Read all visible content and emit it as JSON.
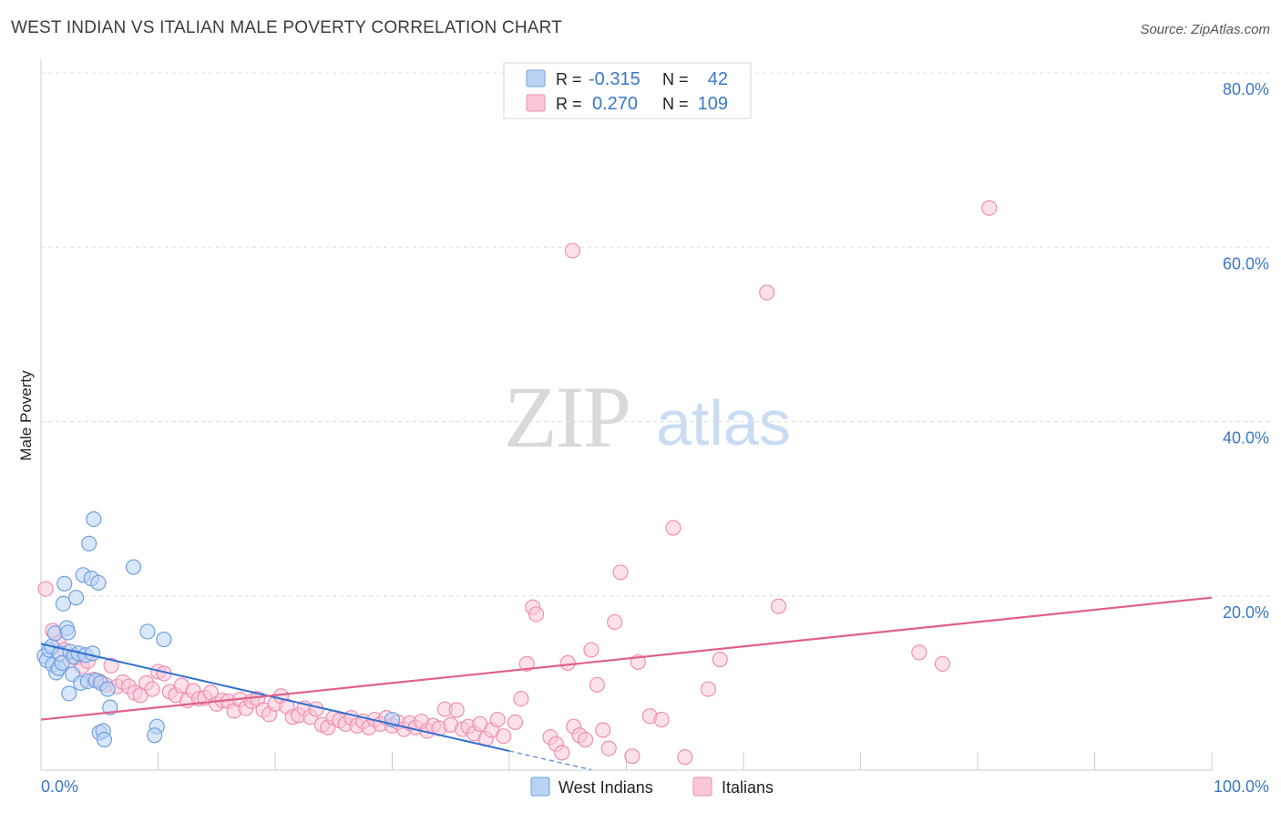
{
  "header": {
    "title": "WEST INDIAN VS ITALIAN MALE POVERTY CORRELATION CHART",
    "source": "Source: ZipAtlas.com"
  },
  "watermark": {
    "zip": "ZIP",
    "atlas": "atlas"
  },
  "colors": {
    "blue": "#6fa0e0",
    "blue_fill": "#b9d3f5",
    "blue_line": "#2f6fd0",
    "pink": "#ef8fb0",
    "pink_fill": "#f9c7d8",
    "pink_line": "#e0608a",
    "tick_label": "#3a78c9",
    "grid": "#dddddd"
  },
  "legend": {
    "rows": [
      {
        "r_label": "R =",
        "r_value": "-0.315",
        "n_label": "N =",
        "n_value": "42"
      },
      {
        "r_label": "R =",
        "r_value": "0.270",
        "n_label": "N =",
        "n_value": "109"
      }
    ]
  },
  "chart_data": {
    "type": "scatter",
    "title": "WEST INDIAN VS ITALIAN MALE POVERTY CORRELATION CHART",
    "xlabel": "",
    "ylabel": "Male Poverty",
    "xlim": [
      0,
      100
    ],
    "ylim": [
      0,
      80
    ],
    "x_tick_labels": [
      "0.0%",
      "100.0%"
    ],
    "y_ticks": [
      20,
      40,
      60,
      80
    ],
    "y_tick_labels": [
      "20.0%",
      "40.0%",
      "60.0%",
      "80.0%"
    ],
    "grid": true,
    "legend_position": "bottom-center",
    "series": [
      {
        "name": "West Indians",
        "r": -0.315,
        "n": 42,
        "trend": {
          "x0": 0,
          "y0": 14.5,
          "x1": 40,
          "y1": 2.2,
          "dash_to_x": 47
        },
        "points": [
          [
            0.3,
            13.1
          ],
          [
            0.5,
            12.6
          ],
          [
            0.7,
            13.8
          ],
          [
            0.9,
            14.2
          ],
          [
            1.0,
            12.1
          ],
          [
            1.2,
            15.7
          ],
          [
            1.3,
            11.2
          ],
          [
            1.5,
            11.7
          ],
          [
            1.6,
            13.4
          ],
          [
            1.8,
            12.3
          ],
          [
            1.9,
            19.1
          ],
          [
            2.0,
            21.4
          ],
          [
            2.2,
            16.3
          ],
          [
            2.3,
            15.8
          ],
          [
            2.5,
            13.6
          ],
          [
            2.7,
            11.0
          ],
          [
            2.4,
            8.8
          ],
          [
            2.8,
            13.0
          ],
          [
            3.0,
            19.8
          ],
          [
            3.2,
            13.4
          ],
          [
            3.4,
            10.0
          ],
          [
            3.6,
            22.4
          ],
          [
            3.8,
            13.2
          ],
          [
            4.0,
            10.2
          ],
          [
            4.1,
            26.0
          ],
          [
            4.3,
            22.0
          ],
          [
            4.4,
            13.4
          ],
          [
            4.5,
            28.8
          ],
          [
            4.7,
            10.3
          ],
          [
            4.9,
            21.5
          ],
          [
            5.0,
            4.3
          ],
          [
            5.1,
            10.0
          ],
          [
            5.3,
            4.5
          ],
          [
            5.4,
            3.5
          ],
          [
            5.7,
            9.3
          ],
          [
            5.9,
            7.2
          ],
          [
            7.9,
            23.3
          ],
          [
            9.1,
            15.9
          ],
          [
            9.9,
            5.0
          ],
          [
            9.7,
            4.0
          ],
          [
            10.5,
            15.0
          ],
          [
            30.0,
            5.8
          ]
        ]
      },
      {
        "name": "Italians",
        "r": 0.27,
        "n": 109,
        "trend": {
          "x0": 0,
          "y0": 5.8,
          "x1": 100,
          "y1": 19.8
        },
        "points": [
          [
            0.4,
            20.8
          ],
          [
            1.0,
            16.0
          ],
          [
            1.5,
            14.6
          ],
          [
            2.0,
            13.8
          ],
          [
            2.5,
            12.6
          ],
          [
            3.0,
            12.9
          ],
          [
            3.5,
            11.9
          ],
          [
            4.0,
            12.5
          ],
          [
            4.5,
            10.4
          ],
          [
            5.0,
            10.2
          ],
          [
            5.5,
            9.8
          ],
          [
            6.0,
            12.0
          ],
          [
            6.5,
            9.6
          ],
          [
            7.0,
            10.1
          ],
          [
            7.5,
            9.6
          ],
          [
            8.0,
            8.9
          ],
          [
            8.5,
            8.6
          ],
          [
            9.0,
            10.0
          ],
          [
            9.5,
            9.3
          ],
          [
            10.0,
            11.3
          ],
          [
            10.5,
            11.1
          ],
          [
            11.0,
            9.0
          ],
          [
            11.5,
            8.6
          ],
          [
            12.0,
            9.7
          ],
          [
            12.5,
            8.0
          ],
          [
            13.0,
            9.1
          ],
          [
            13.5,
            8.2
          ],
          [
            14.0,
            8.3
          ],
          [
            14.5,
            8.9
          ],
          [
            15.0,
            7.6
          ],
          [
            15.5,
            8.0
          ],
          [
            16.0,
            7.9
          ],
          [
            16.5,
            6.8
          ],
          [
            17.0,
            8.1
          ],
          [
            17.5,
            7.1
          ],
          [
            18.0,
            7.9
          ],
          [
            18.5,
            8.2
          ],
          [
            19.0,
            6.9
          ],
          [
            19.5,
            6.4
          ],
          [
            20.0,
            7.6
          ],
          [
            20.5,
            8.5
          ],
          [
            21.0,
            7.3
          ],
          [
            21.5,
            6.1
          ],
          [
            22.0,
            6.3
          ],
          [
            22.5,
            7.1
          ],
          [
            23.0,
            6.1
          ],
          [
            23.5,
            7.0
          ],
          [
            24.0,
            5.2
          ],
          [
            24.5,
            4.9
          ],
          [
            25.0,
            6.0
          ],
          [
            25.5,
            5.7
          ],
          [
            26.0,
            5.3
          ],
          [
            26.5,
            6.0
          ],
          [
            27.0,
            5.1
          ],
          [
            27.5,
            5.6
          ],
          [
            28.0,
            4.9
          ],
          [
            28.5,
            5.8
          ],
          [
            29.0,
            5.3
          ],
          [
            29.5,
            6.0
          ],
          [
            30.0,
            5.1
          ],
          [
            30.5,
            5.5
          ],
          [
            31.0,
            4.7
          ],
          [
            31.5,
            5.4
          ],
          [
            32.0,
            4.9
          ],
          [
            32.5,
            5.6
          ],
          [
            33.0,
            4.5
          ],
          [
            33.5,
            5.1
          ],
          [
            34.0,
            4.8
          ],
          [
            34.5,
            7.0
          ],
          [
            35.0,
            5.2
          ],
          [
            35.5,
            6.9
          ],
          [
            36.0,
            4.7
          ],
          [
            36.5,
            5.0
          ],
          [
            37.0,
            4.2
          ],
          [
            37.5,
            5.3
          ],
          [
            38.0,
            3.6
          ],
          [
            38.5,
            4.6
          ],
          [
            39.0,
            5.8
          ],
          [
            39.5,
            3.9
          ],
          [
            40.5,
            5.5
          ],
          [
            41.0,
            8.2
          ],
          [
            41.5,
            12.2
          ],
          [
            42.0,
            18.7
          ],
          [
            42.3,
            17.9
          ],
          [
            43.5,
            3.8
          ],
          [
            44.0,
            3.0
          ],
          [
            44.5,
            2.0
          ],
          [
            45.0,
            12.3
          ],
          [
            45.5,
            5.0
          ],
          [
            46.0,
            4.0
          ],
          [
            46.5,
            3.5
          ],
          [
            47.0,
            13.8
          ],
          [
            47.5,
            9.8
          ],
          [
            48.0,
            4.6
          ],
          [
            48.5,
            2.5
          ],
          [
            49.0,
            17.0
          ],
          [
            49.5,
            22.7
          ],
          [
            50.5,
            1.6
          ],
          [
            51.0,
            12.4
          ],
          [
            52.0,
            6.2
          ],
          [
            53.0,
            5.8
          ],
          [
            54.0,
            27.8
          ],
          [
            55.0,
            1.5
          ],
          [
            57.0,
            9.3
          ],
          [
            58.0,
            12.7
          ],
          [
            62.0,
            54.8
          ],
          [
            63.0,
            18.8
          ],
          [
            75.0,
            13.5
          ],
          [
            77.0,
            12.2
          ],
          [
            81.0,
            64.5
          ],
          [
            45.4,
            59.6
          ]
        ]
      }
    ]
  }
}
